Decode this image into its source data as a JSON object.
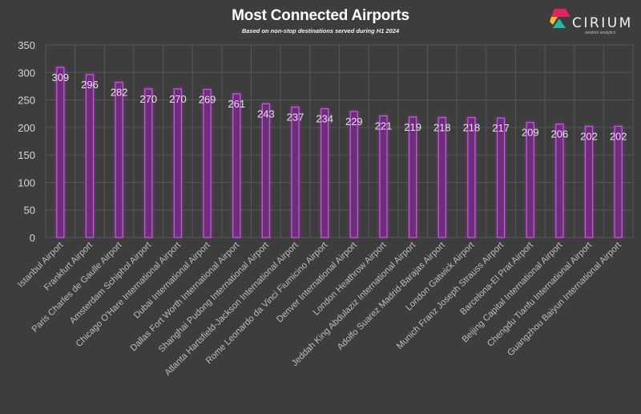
{
  "header": {
    "title": "Most Connected Airports",
    "subtitle": "Based on non-stop destinations served during H1 2024"
  },
  "logo": {
    "name": "CIRIUM",
    "tagline": "aviation analytics",
    "colors": [
      "#e0245e",
      "#f5b82e",
      "#2bb3a3"
    ]
  },
  "colors": {
    "background": "#3d3d3d",
    "bar_fill": "#6e2d7a",
    "bar_glow": "#a23bb5",
    "bar_stroke": "#c45bd6",
    "grid": "#575757"
  },
  "chart_data": {
    "type": "bar",
    "title": "Most Connected Airports",
    "subtitle": "Based on non-stop destinations served during H1 2024",
    "xlabel": "",
    "ylabel": "",
    "ylim": [
      0,
      350
    ],
    "yticks": [
      0,
      50,
      100,
      150,
      200,
      250,
      300,
      350
    ],
    "grid": true,
    "legend": "none",
    "categories": [
      "Istanbul Airport",
      "Frankfurt Airport",
      "Paris Charles de Gaulle Airport",
      "Amsterdam Schiphol Airport",
      "Chicago O'Hare International Airport",
      "Dubai International Airport",
      "Dallas Fort Worth International Airport",
      "Shanghai Pudong International Airport",
      "Atlanta Hartsfield-Jackson International Airport",
      "Rome Leonardo da Vinci Fiumicino Airport",
      "Denver International Airport",
      "London Heathrow Airport",
      "Jeddah King Abdulaziz International Airport",
      "Adolfo Suarez Madrid-Barajas Airport",
      "London Gatwick Airport",
      "Munich Franz Joseph Strauss Airport",
      "Barcelona-El Prat Airport",
      "Beijing Capital International Airport",
      "Chengdu Tianfu International Airport",
      "Guangzhou Baiyun International Airport"
    ],
    "values": [
      309,
      296,
      282,
      270,
      270,
      269,
      261,
      243,
      237,
      234,
      229,
      221,
      219,
      218,
      218,
      217,
      209,
      206,
      202,
      202
    ]
  }
}
